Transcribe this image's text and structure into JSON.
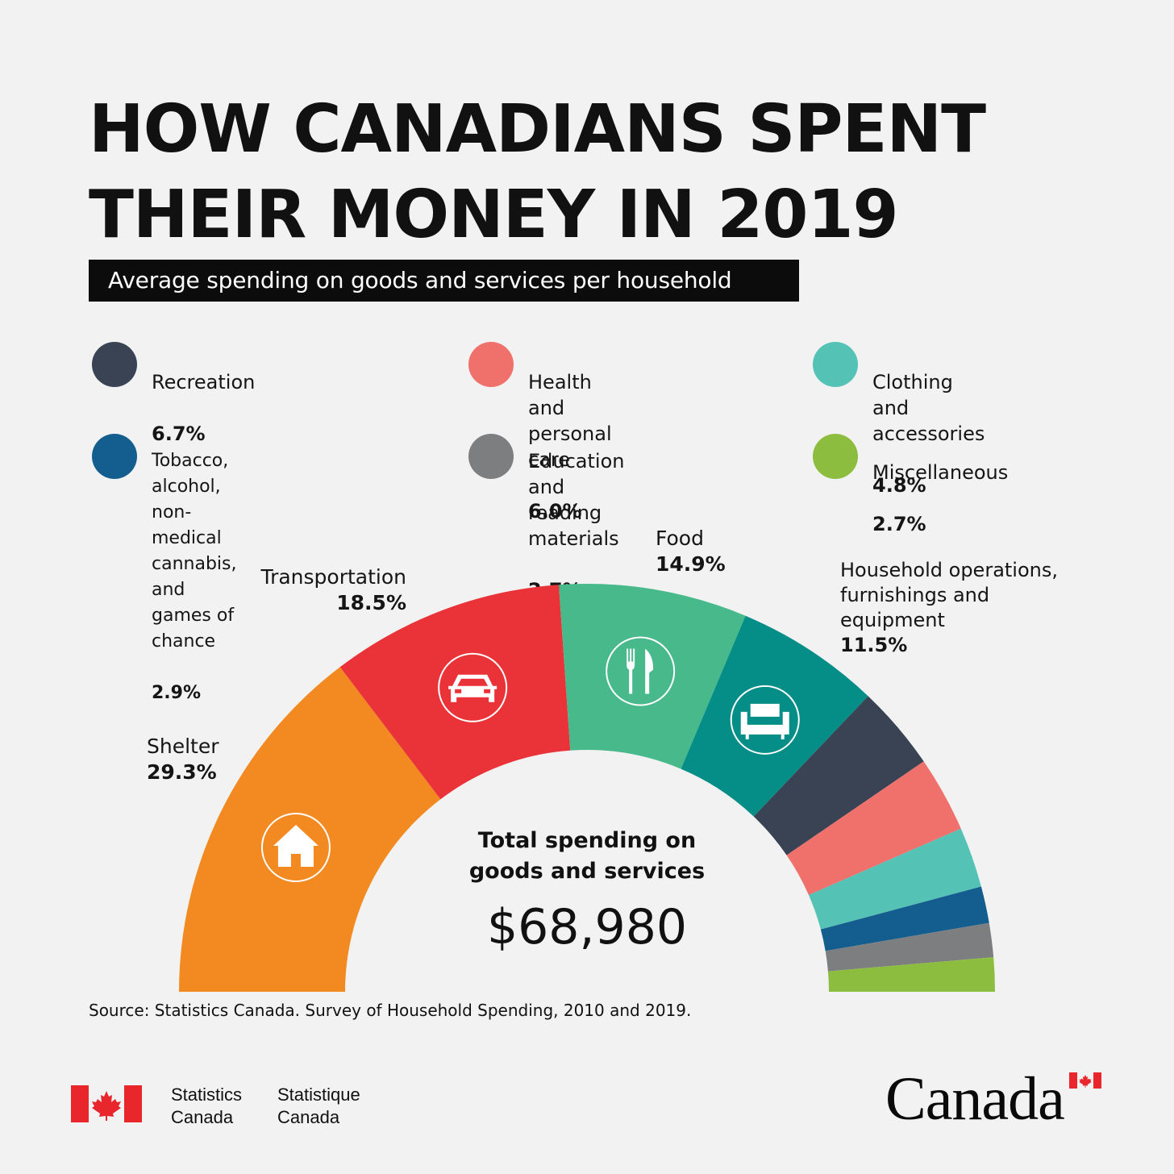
{
  "header": {
    "title_line1": "HOW CANADIANS SPENT",
    "title_line2": "THEIR MONEY IN 2019",
    "subtitle": "Average spending on goods and services per household"
  },
  "legend": [
    {
      "label": "Recreation",
      "pct": "6.7%",
      "color": "#394353"
    },
    {
      "label": "Health and personal care",
      "pct": "6.0%",
      "color": "#f0706b"
    },
    {
      "label": "Clothing and accessories",
      "pct": "4.8%",
      "color": "#55c2b6"
    },
    {
      "label": "Tobacco, alcohol, non-medical\ncannabis, and games of chance",
      "pct": "2.9%",
      "color": "#135e8e"
    },
    {
      "label": "Education and\nreading materials",
      "pct": "2.7%",
      "color": "#7d7e80"
    },
    {
      "label": "Miscellaneous",
      "pct": "2.7%",
      "color": "#8dbd3e"
    }
  ],
  "category_labels": {
    "shelter": {
      "label": "Shelter",
      "pct": "29.3%"
    },
    "transportation": {
      "label": "Transportation",
      "pct": "18.5%"
    },
    "food": {
      "label": "Food",
      "pct": "14.9%"
    },
    "household": {
      "label": "Household operations,\nfurnishings and\nequipment",
      "pct": "11.5%"
    }
  },
  "center": {
    "label": "Total spending on\ngoods and services",
    "value": "$68,980"
  },
  "source": "Source: Statistics Canada. Survey of Household Spending, 2010 and 2019.",
  "footer": {
    "signature_en": "Statistics\nCanada",
    "signature_fr": "Statistique\nCanada",
    "wordmark": "Canada"
  },
  "chart_data": {
    "type": "pie",
    "title": "HOW CANADIANS SPENT THEIR MONEY IN 2019",
    "subtitle": "Average spending on goods and services per household",
    "total_label": "Total spending on goods and services",
    "total": 68980,
    "unit": "%",
    "shape": "half-donut",
    "series": [
      {
        "name": "Shelter",
        "value": 29.3,
        "color": "#f28a21",
        "icon": "house-icon"
      },
      {
        "name": "Transportation",
        "value": 18.5,
        "color": "#ea3338",
        "icon": "car-icon"
      },
      {
        "name": "Food",
        "value": 14.9,
        "color": "#48b98b",
        "icon": "fork-knife-icon"
      },
      {
        "name": "Household operations, furnishings and equipment",
        "value": 11.5,
        "color": "#058d88",
        "icon": "sofa-icon"
      },
      {
        "name": "Recreation",
        "value": 6.7,
        "color": "#394353"
      },
      {
        "name": "Health and personal care",
        "value": 6.0,
        "color": "#f0706b"
      },
      {
        "name": "Clothing and accessories",
        "value": 4.8,
        "color": "#55c2b6"
      },
      {
        "name": "Tobacco, alcohol, non-medical cannabis, and games of chance",
        "value": 2.9,
        "color": "#135e8e"
      },
      {
        "name": "Education and reading materials",
        "value": 2.7,
        "color": "#7d7e80"
      },
      {
        "name": "Miscellaneous",
        "value": 2.7,
        "color": "#8dbd3e"
      }
    ]
  }
}
